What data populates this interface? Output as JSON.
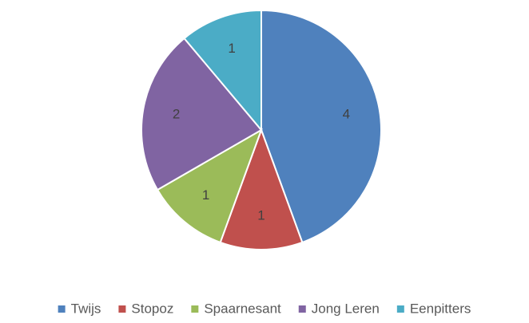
{
  "chart_data": {
    "type": "pie",
    "categories": [
      "Twijs",
      "Stopoz",
      "Spaarnesant",
      "Jong Leren",
      "Eenpitters"
    ],
    "values": [
      4,
      1,
      1,
      2,
      1
    ],
    "colors": [
      "#4f81bd",
      "#c0504d",
      "#9bbb59",
      "#8064a2",
      "#4bacc6"
    ],
    "legend": "bottom"
  }
}
